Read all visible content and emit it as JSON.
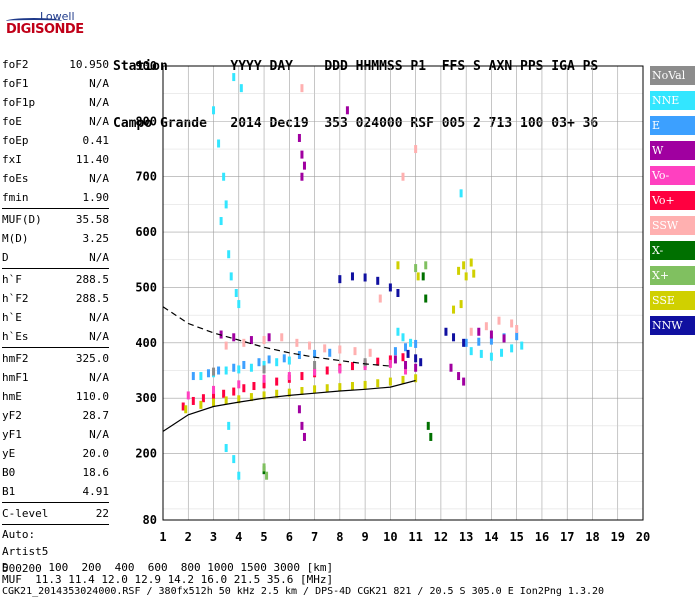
{
  "logo": {
    "top": "Lowell",
    "main": "DIGISONDE"
  },
  "header": {
    "line1": "Station        YYYY DAY    DDD HHMMSS P1  FFS S AXN PPS IGA PS",
    "line2": "Campo Grande   2014 Dec19  353 024000 RSF 005 2 713 100 03+ 36"
  },
  "scalars": {
    "group1": [
      {
        "k": "foF2",
        "v": "10.950"
      },
      {
        "k": "foF1",
        "v": "N/A"
      },
      {
        "k": "foF1p",
        "v": "N/A"
      },
      {
        "k": "foE",
        "v": "N/A"
      },
      {
        "k": "foEp",
        "v": "0.41"
      },
      {
        "k": "fxI",
        "v": "11.40"
      },
      {
        "k": "foEs",
        "v": "N/A"
      },
      {
        "k": "fmin",
        "v": "1.90"
      }
    ],
    "group2": [
      {
        "k": "MUF(D)",
        "v": "35.58"
      },
      {
        "k": "M(D)",
        "v": "3.25"
      },
      {
        "k": "D",
        "v": "N/A"
      }
    ],
    "group3": [
      {
        "k": "h`F",
        "v": "288.5"
      },
      {
        "k": "h`F2",
        "v": "288.5"
      },
      {
        "k": "h`E",
        "v": "N/A"
      },
      {
        "k": "h`Es",
        "v": "N/A"
      }
    ],
    "group4": [
      {
        "k": "hmF2",
        "v": "325.0"
      },
      {
        "k": "hmF1",
        "v": "N/A"
      },
      {
        "k": "hmE",
        "v": "110.0"
      },
      {
        "k": "yF2",
        "v": "28.7"
      },
      {
        "k": "yF1",
        "v": "N/A"
      },
      {
        "k": "yE",
        "v": "20.0"
      },
      {
        "k": "B0",
        "v": "18.6"
      },
      {
        "k": "B1",
        "v": "4.91"
      }
    ],
    "group5": [
      {
        "k": "C-level",
        "v": "22"
      }
    ],
    "artist": [
      "Auto:",
      "Artist5",
      "500200"
    ]
  },
  "footer": {
    "d_line": "D      100  200  400  600  800 1000 1500 3000 [km]",
    "muf_line": "MUF  11.3 11.4 12.0 12.9 14.2 16.0 21.5 35.6 [MHz]",
    "file_line": "CGK21_2014353024000.RSF / 380fx512h 50 kHz 2.5 km / DPS-4D CGK21 821 / 20.5 S 305.0 E Ion2Png 1.3.20"
  },
  "legend": [
    {
      "label": "NoVal",
      "color": "#8c8c8c"
    },
    {
      "label": "NNE",
      "color": "#33e6ff"
    },
    {
      "label": "E",
      "color": "#3ca0ff"
    },
    {
      "label": "W",
      "color": "#a000a0"
    },
    {
      "label": "Vo-",
      "color": "#ff40c0"
    },
    {
      "label": "Vo+",
      "color": "#ff0040"
    },
    {
      "label": "SSW",
      "color": "#ffb0b0"
    },
    {
      "label": "X-",
      "color": "#007000"
    },
    {
      "label": "X+",
      "color": "#80c060"
    },
    {
      "label": "SSE",
      "color": "#d0d000"
    },
    {
      "label": "NNW",
      "color": "#1010a0"
    }
  ],
  "chart_data": {
    "type": "scatter",
    "title": "",
    "xlabel": "",
    "ylabel": "",
    "xlim": [
      1,
      20
    ],
    "ylim": [
      80,
      900
    ],
    "x_ticks": [
      1,
      2,
      3,
      4,
      5,
      6,
      7,
      8,
      9,
      10,
      11,
      12,
      13,
      14,
      15,
      16,
      17,
      18,
      19,
      20
    ],
    "y_ticks": [
      80,
      200,
      300,
      400,
      500,
      600,
      700,
      800,
      900
    ],
    "y_tick_labels": [
      "80",
      "200",
      "300",
      "400",
      "500",
      "600",
      "700",
      "800",
      "900"
    ],
    "grid": true,
    "legend_position": "right",
    "series": [
      {
        "color": "#ff0040",
        "points": [
          [
            1.8,
            285
          ],
          [
            2.2,
            295
          ],
          [
            2.6,
            300
          ],
          [
            3,
            305
          ],
          [
            3.4,
            308
          ],
          [
            3.8,
            312
          ],
          [
            4.2,
            318
          ],
          [
            4.6,
            322
          ],
          [
            5,
            325
          ],
          [
            5.5,
            330
          ],
          [
            6,
            335
          ],
          [
            6.5,
            340
          ],
          [
            7,
            345
          ],
          [
            7.5,
            350
          ],
          [
            8,
            355
          ],
          [
            8.5,
            358
          ],
          [
            9,
            362
          ],
          [
            9.5,
            366
          ],
          [
            10,
            370
          ],
          [
            10.5,
            374
          ]
        ]
      },
      {
        "color": "#d0d000",
        "points": [
          [
            1.9,
            280
          ],
          [
            2.5,
            288
          ],
          [
            3,
            292
          ],
          [
            3.5,
            296
          ],
          [
            4,
            298
          ],
          [
            4.5,
            302
          ],
          [
            5,
            305
          ],
          [
            5.5,
            308
          ],
          [
            6,
            310
          ],
          [
            6.5,
            313
          ],
          [
            7,
            316
          ],
          [
            7.5,
            318
          ],
          [
            8,
            320
          ],
          [
            8.5,
            322
          ],
          [
            9,
            324
          ],
          [
            9.5,
            327
          ],
          [
            10,
            330
          ],
          [
            10.5,
            333
          ],
          [
            11,
            336
          ],
          [
            12.7,
            530
          ],
          [
            12.9,
            540
          ],
          [
            13,
            520
          ],
          [
            13.2,
            545
          ],
          [
            13.3,
            525
          ],
          [
            12.5,
            460
          ],
          [
            12.8,
            470
          ],
          [
            10.3,
            540
          ],
          [
            11.1,
            520
          ]
        ]
      },
      {
        "color": "#33e6ff",
        "points": [
          [
            3,
            820
          ],
          [
            3.2,
            760
          ],
          [
            3.4,
            700
          ],
          [
            3.5,
            650
          ],
          [
            3.3,
            620
          ],
          [
            3.6,
            560
          ],
          [
            3.7,
            520
          ],
          [
            3.9,
            490
          ],
          [
            4,
            470
          ],
          [
            3.8,
            880
          ],
          [
            4.1,
            860
          ],
          [
            3.6,
            250
          ],
          [
            3.5,
            210
          ],
          [
            3.8,
            190
          ],
          [
            4,
            160
          ],
          [
            2.5,
            340
          ],
          [
            3,
            345
          ],
          [
            3.5,
            350
          ],
          [
            4,
            352
          ],
          [
            4.5,
            355
          ],
          [
            5,
            360
          ],
          [
            5.5,
            365
          ],
          [
            6,
            368
          ],
          [
            10.3,
            420
          ],
          [
            10.5,
            410
          ],
          [
            10.8,
            400
          ],
          [
            13.2,
            385
          ],
          [
            13.6,
            380
          ],
          [
            14,
            375
          ],
          [
            14.4,
            382
          ],
          [
            14.8,
            390
          ],
          [
            15.2,
            395
          ],
          [
            12.8,
            670
          ]
        ]
      },
      {
        "color": "#3ca0ff",
        "points": [
          [
            2.2,
            340
          ],
          [
            2.8,
            345
          ],
          [
            3.2,
            350
          ],
          [
            3.8,
            355
          ],
          [
            4.2,
            360
          ],
          [
            4.8,
            365
          ],
          [
            5.2,
            370
          ],
          [
            5.8,
            372
          ],
          [
            6.4,
            378
          ],
          [
            7,
            380
          ],
          [
            7.6,
            382
          ],
          [
            10.2,
            385
          ],
          [
            10.6,
            392
          ],
          [
            11,
            398
          ],
          [
            13,
            400
          ],
          [
            13.5,
            402
          ],
          [
            14,
            404
          ],
          [
            14.5,
            410
          ],
          [
            15,
            412
          ]
        ]
      },
      {
        "color": "#ffb0b0",
        "points": [
          [
            3.5,
            395
          ],
          [
            4.2,
            400
          ],
          [
            5,
            405
          ],
          [
            5.7,
            410
          ],
          [
            6.3,
            400
          ],
          [
            6.8,
            395
          ],
          [
            7.4,
            390
          ],
          [
            8,
            388
          ],
          [
            8.6,
            385
          ],
          [
            9.2,
            382
          ],
          [
            13.2,
            420
          ],
          [
            13.8,
            430
          ],
          [
            14.3,
            440
          ],
          [
            14.8,
            435
          ],
          [
            15,
            425
          ],
          [
            10.5,
            700
          ],
          [
            11,
            750
          ],
          [
            9.6,
            480
          ],
          [
            6.5,
            860
          ]
        ]
      },
      {
        "color": "#ff40c0",
        "points": [
          [
            2,
            305
          ],
          [
            3,
            315
          ],
          [
            4,
            325
          ],
          [
            5,
            335
          ],
          [
            6,
            340
          ],
          [
            7,
            348
          ],
          [
            8,
            352
          ],
          [
            9,
            358
          ],
          [
            10,
            362
          ],
          [
            10.6,
            350
          ]
        ]
      },
      {
        "color": "#a000a0",
        "points": [
          [
            6.4,
            770
          ],
          [
            6.5,
            740
          ],
          [
            6.6,
            720
          ],
          [
            6.5,
            700
          ],
          [
            6.4,
            280
          ],
          [
            6.5,
            250
          ],
          [
            6.6,
            230
          ],
          [
            10.2,
            370
          ],
          [
            10.6,
            360
          ],
          [
            11,
            355
          ],
          [
            12.4,
            355
          ],
          [
            12.7,
            340
          ],
          [
            12.9,
            330
          ],
          [
            13.5,
            420
          ],
          [
            14,
            415
          ],
          [
            14.5,
            408
          ],
          [
            8.3,
            820
          ],
          [
            3.3,
            415
          ],
          [
            3.8,
            410
          ],
          [
            4.5,
            405
          ],
          [
            5.2,
            410
          ]
        ]
      },
      {
        "color": "#1010a0",
        "points": [
          [
            8,
            515
          ],
          [
            8.5,
            520
          ],
          [
            9,
            518
          ],
          [
            9.5,
            512
          ],
          [
            10,
            500
          ],
          [
            10.3,
            490
          ],
          [
            10.7,
            380
          ],
          [
            11,
            372
          ],
          [
            11.2,
            365
          ],
          [
            12.2,
            420
          ],
          [
            12.5,
            410
          ],
          [
            12.9,
            400
          ]
        ]
      },
      {
        "color": "#007000",
        "points": [
          [
            11.3,
            520
          ],
          [
            11.4,
            480
          ],
          [
            11.5,
            250
          ],
          [
            11.6,
            230
          ],
          [
            5,
            170
          ]
        ]
      },
      {
        "color": "#80c060",
        "points": [
          [
            5,
            175
          ],
          [
            5.1,
            160
          ],
          [
            11,
            535
          ],
          [
            11.4,
            540
          ]
        ]
      },
      {
        "color": "#8c8c8c",
        "points": [
          [
            3,
            348
          ],
          [
            5,
            352
          ],
          [
            7,
            360
          ],
          [
            9,
            365
          ]
        ]
      }
    ],
    "curves": [
      {
        "style": "solid",
        "points": [
          [
            1,
            240
          ],
          [
            1.5,
            255
          ],
          [
            2,
            270
          ],
          [
            3,
            285
          ],
          [
            4,
            293
          ],
          [
            5,
            300
          ],
          [
            6,
            305
          ],
          [
            7,
            309
          ],
          [
            8,
            313
          ],
          [
            9,
            316
          ],
          [
            10,
            320
          ],
          [
            11,
            332
          ]
        ]
      },
      {
        "style": "dashed",
        "points": [
          [
            1,
            465
          ],
          [
            1.5,
            450
          ],
          [
            2,
            435
          ],
          [
            3,
            418
          ],
          [
            4,
            405
          ],
          [
            5,
            392
          ],
          [
            6,
            382
          ],
          [
            7,
            374
          ],
          [
            8,
            368
          ],
          [
            9,
            362
          ],
          [
            10,
            358
          ]
        ]
      }
    ]
  }
}
